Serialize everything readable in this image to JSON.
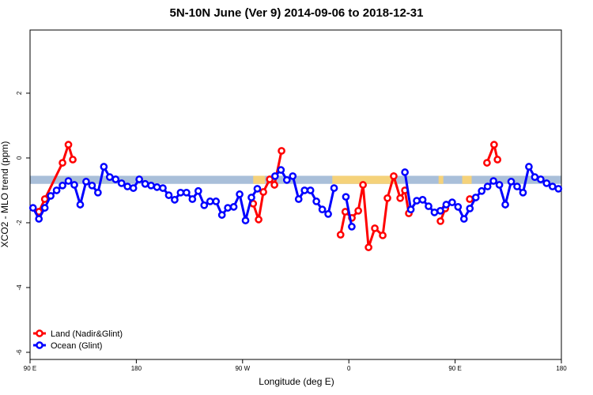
{
  "chart_data": {
    "type": "line",
    "title": "5N-10N June (Ver 9)   2014-09-06 to 2018-12-31",
    "xlabel": "Longitude (deg E)",
    "ylabel": "XCO2 - MLO trend (ppm)",
    "xlim": [
      90,
      540
    ],
    "ylim": [
      -6.22,
      3.95
    ],
    "xticks": [
      {
        "value": 90,
        "label": "90 E"
      },
      180,
      {
        "value": 270,
        "label": "90 W"
      },
      {
        "value": 360,
        "label": "0"
      },
      {
        "value": 450,
        "label": "90 E"
      },
      {
        "value": 540,
        "label": "180"
      }
    ],
    "yticks": [
      -6,
      -4,
      -2,
      0,
      2
    ],
    "band": {
      "ylim": [
        -0.8,
        -0.55
      ],
      "color": "#a9bfd9"
    },
    "land_spans": {
      "color": "#f5d27a",
      "spans": [
        [
          279,
          289
        ],
        [
          346,
          400
        ],
        [
          436,
          440
        ],
        [
          456,
          464
        ]
      ]
    },
    "legend": "bottom-left",
    "series": [
      {
        "name": "Land (Nadir&Glint)",
        "color": "#ff0000",
        "x": [
          97.5,
          102.5,
          117.5,
          122.5,
          126.2,
          null,
          279,
          283.6,
          287.6,
          293,
          297,
          303,
          null,
          353,
          357,
          362.6,
          368,
          372,
          376.7,
          382,
          388.7,
          392.7,
          398,
          403.5,
          407.5,
          410.8,
          null,
          437.6,
          441.7,
          null,
          462.4,
          null,
          477,
          483,
          485.9
        ],
        "values": [
          -1.66,
          -1.27,
          -0.15,
          0.41,
          -0.05,
          null,
          -1.41,
          -1.9,
          -1.05,
          -0.66,
          -0.83,
          0.22,
          null,
          -2.37,
          -1.66,
          -1.85,
          -1.63,
          -0.83,
          -2.76,
          -2.17,
          -2.39,
          -1.24,
          -0.56,
          -1.24,
          -1.0,
          -1.71,
          null,
          -1.95,
          -1.56,
          null,
          -1.27,
          null,
          -0.15,
          0.41,
          -0.05
        ]
      },
      {
        "name": "Ocean (Glint)",
        "color": "#0000ff",
        "x": [
          92.5,
          97.5,
          102.5,
          107.5,
          112.5,
          117.5,
          122.5,
          127.5,
          132.5,
          137.5,
          142.5,
          147.5,
          152.5,
          157.5,
          162.5,
          167.5,
          172.5,
          177.5,
          182.5,
          187.5,
          192.5,
          197.5,
          202.5,
          207.5,
          212.5,
          217.5,
          222.5,
          227.5,
          232.5,
          237.5,
          242.5,
          247.5,
          252.5,
          257.5,
          262.5,
          267.5,
          272.5,
          277.5,
          282.5,
          null,
          297.5,
          302.5,
          307.5,
          312.5,
          317.5,
          322.5,
          327.5,
          332.5,
          337.5,
          342.5,
          347.5,
          null,
          357.5,
          362.5,
          null,
          407.5,
          412.5,
          417.5,
          422.5,
          427.5,
          432.5,
          437.5,
          442.5,
          447.5,
          452.5,
          457.5,
          462.5,
          467.5,
          472.5,
          477.5,
          482.5,
          487.5,
          492.5,
          497.5,
          502.5,
          507.5,
          512.5,
          517.5,
          522.5,
          527.5,
          532.5,
          537.5
        ],
        "values": [
          -1.54,
          -1.88,
          -1.54,
          -1.17,
          -1.0,
          -0.85,
          -0.71,
          -0.83,
          -1.44,
          -0.73,
          -0.85,
          -1.07,
          -0.27,
          -0.59,
          -0.66,
          -0.78,
          -0.88,
          -0.93,
          -0.66,
          -0.8,
          -0.85,
          -0.9,
          -0.93,
          -1.15,
          -1.29,
          -1.07,
          -1.07,
          -1.27,
          -1.02,
          -1.46,
          -1.34,
          -1.34,
          -1.76,
          -1.54,
          -1.51,
          -1.12,
          -1.93,
          -1.22,
          -0.95,
          null,
          -0.56,
          -0.37,
          -0.68,
          -0.56,
          -1.27,
          -1.0,
          -1.0,
          -1.34,
          -1.59,
          -1.73,
          -0.93,
          null,
          -1.2,
          -2.12,
          null,
          -0.44,
          -1.59,
          -1.32,
          -1.29,
          -1.49,
          -1.68,
          -1.63,
          -1.44,
          -1.37,
          -1.51,
          -1.88,
          -1.56,
          -1.22,
          -1.02,
          -0.88,
          -0.71,
          -0.83,
          -1.44,
          -0.73,
          -0.88,
          -1.07,
          -0.27,
          -0.59,
          -0.66,
          -0.78,
          -0.88,
          -0.95
        ]
      }
    ]
  }
}
